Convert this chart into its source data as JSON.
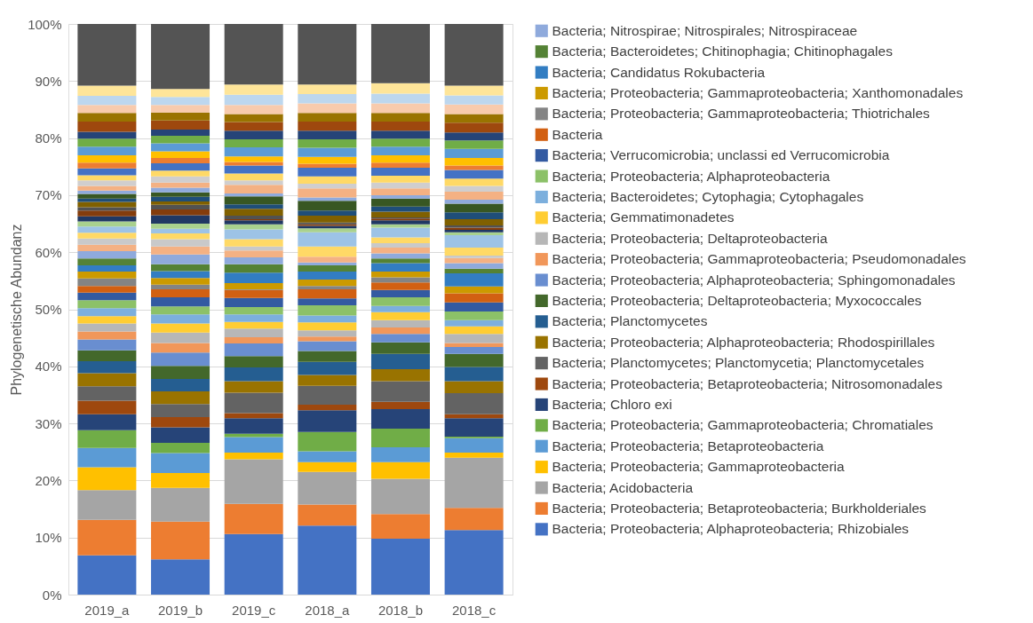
{
  "chart_data": {
    "type": "bar",
    "stacked": true,
    "ylabel": "Phylogenetische Abundanz",
    "categories": [
      "2019_a",
      "2019_b",
      "2019_c",
      "2018_a",
      "2018_b",
      "2018_c"
    ],
    "ylim": [
      0,
      100
    ],
    "yticks": [
      {
        "value": 0,
        "label": "0%"
      },
      {
        "value": 10,
        "label": "10%"
      },
      {
        "value": 20,
        "label": "20%"
      },
      {
        "value": 30,
        "label": "30%"
      },
      {
        "value": 40,
        "label": "40%"
      },
      {
        "value": 50,
        "label": "50%"
      },
      {
        "value": 60,
        "label": "60%"
      },
      {
        "value": 70,
        "label": "70%"
      },
      {
        "value": 80,
        "label": "80%"
      },
      {
        "value": 90,
        "label": "90%"
      },
      {
        "value": 100,
        "label": "100%"
      }
    ],
    "grid": "y",
    "legend": "right",
    "series": [
      {
        "name": "Bacteria; Proteobacteria; Alphaproteobacteria; Rhizobiales",
        "color": "#4472c4",
        "values": [
          6.9,
          6.2,
          10.6,
          12.1,
          9.8,
          11.3
        ]
      },
      {
        "name": "Bacteria; Proteobacteria; Betaproteobacteria; Burkholderiales",
        "color": "#ed7d31",
        "values": [
          6.2,
          6.6,
          5.3,
          3.7,
          4.3,
          3.9
        ]
      },
      {
        "name": "Bacteria; Acidobacteria",
        "color": "#a5a5a5",
        "values": [
          5.2,
          5.9,
          7.8,
          5.7,
          6.2,
          8.8
        ]
      },
      {
        "name": "Bacteria; Proteobacteria; Gammaproteobacteria",
        "color": "#ffc000",
        "values": [
          4.0,
          2.6,
          1.2,
          1.7,
          2.9,
          0.9
        ]
      },
      {
        "name": "Bacteria; Proteobacteria; Betaproteobacteria",
        "color": "#5b9bd5",
        "values": [
          3.4,
          3.5,
          2.7,
          1.9,
          2.6,
          2.5
        ]
      },
      {
        "name": "Bacteria; Proteobacteria; Gammaproteobacteria; Chromatiales",
        "color": "#70ad47",
        "values": [
          3.1,
          1.8,
          0.6,
          3.4,
          3.3,
          0.3
        ]
      },
      {
        "name": "Bacteria; Chloro exi",
        "color": "#264478",
        "values": [
          2.8,
          2.7,
          2.7,
          3.8,
          3.4,
          3.2
        ]
      },
      {
        "name": "Bacteria; Proteobacteria; Betaproteobacteria; Nitrosomonadales",
        "color": "#9e480e",
        "values": [
          2.4,
          1.8,
          0.9,
          1.0,
          1.3,
          0.7
        ]
      },
      {
        "name": "Bacteria; Planctomycetes; Planctomycetia; Planctomycetales",
        "color": "#636363",
        "values": [
          2.5,
          2.3,
          3.6,
          3.3,
          3.6,
          3.7
        ]
      },
      {
        "name": "Bacteria; Proteobacteria; Alphaproteobacteria; Rhodospirillales",
        "color": "#997300",
        "values": [
          2.3,
          2.2,
          2.0,
          1.9,
          2.1,
          2.1
        ]
      },
      {
        "name": "Bacteria; Planctomycetes",
        "color": "#255e91",
        "values": [
          2.1,
          2.2,
          2.4,
          2.3,
          2.7,
          2.5
        ]
      },
      {
        "name": "Bacteria; Proteobacteria; Deltaproteobacteria; Myxococcales",
        "color": "#43682b",
        "values": [
          1.9,
          2.3,
          2.0,
          1.9,
          2.0,
          2.3
        ]
      },
      {
        "name": "Bacteria; Proteobacteria; Alphaproteobacteria; Sphingomonadales",
        "color": "#698ed0",
        "values": [
          1.9,
          2.3,
          2.2,
          1.7,
          1.5,
          1.2
        ]
      },
      {
        "name": "Bacteria; Proteobacteria; Gammaproteobacteria; Pseudomonadales",
        "color": "#f1975a",
        "values": [
          1.4,
          1.7,
          1.1,
          0.8,
          1.1,
          0.7
        ]
      },
      {
        "name": "Bacteria; Proteobacteria; Deltaproteobacteria",
        "color": "#b7b7b7",
        "values": [
          1.4,
          1.8,
          1.5,
          1.1,
          1.3,
          1.6
        ]
      },
      {
        "name": "Bacteria; Gemmatimonadetes",
        "color": "#ffcd33",
        "values": [
          1.3,
          1.6,
          1.2,
          1.4,
          1.4,
          1.3
        ]
      },
      {
        "name": "Bacteria; Bacteroidetes; Cytophagia; Cytophagales",
        "color": "#7cafdd",
        "values": [
          1.4,
          1.6,
          1.3,
          1.2,
          1.1,
          1.1
        ]
      },
      {
        "name": "Bacteria; Proteobacteria; Alphaproteobacteria",
        "color": "#8cc168",
        "values": [
          1.4,
          1.4,
          1.3,
          1.8,
          1.5,
          1.5
        ]
      },
      {
        "name": "Bacteria; Verrucomicrobia; unclassi  ed Verrucomicrobia",
        "color": "#335aa1",
        "values": [
          1.3,
          1.6,
          1.6,
          1.2,
          1.3,
          1.6
        ]
      },
      {
        "name": "Bacteria",
        "color": "#d26012",
        "values": [
          1.2,
          1.4,
          1.4,
          1.6,
          1.3,
          1.6
        ]
      },
      {
        "name": "Bacteria; Proteobacteria; Gammaproteobacteria; Thiotrichales",
        "color": "#848484",
        "values": [
          1.3,
          0.8,
          0.1,
          0.6,
          0.9,
          null
        ]
      },
      {
        "name": "Bacteria; Proteobacteria; Gammaproteobacteria; Xanthomonadales",
        "color": "#cc9a00",
        "values": [
          1.2,
          1.2,
          1.1,
          1.1,
          1.0,
          1.2
        ]
      },
      {
        "name": "Bacteria; Candidatus Rokubacteria",
        "color": "#327dc2",
        "values": [
          1.1,
          1.2,
          1.8,
          1.4,
          1.5,
          2.3
        ]
      },
      {
        "name": "Bacteria; Bacteroidetes; Chitinophagia; Chitinophagales",
        "color": "#548235",
        "values": [
          1.2,
          1.2,
          1.5,
          1.1,
          0.8,
          0.8
        ]
      },
      {
        "name": "Bacteria; Nitrospirae; Nitrospirales; Nitrospiraceae",
        "color": "#8faadc",
        "values": [
          1.3,
          1.7,
          1.2,
          0.5,
          0.9,
          1.0
        ]
      },
      {
        "color": "#f4b183",
        "values": [
          1.1,
          1.4,
          1.2,
          1.0,
          1.0,
          0.9
        ]
      },
      {
        "color": "#c9c9c9",
        "values": [
          1.1,
          1.3,
          0.7,
          null,
          0.8,
          0.4
        ]
      },
      {
        "color": "#ffd966",
        "values": [
          1.0,
          1.0,
          1.3,
          1.8,
          1.0,
          1.4
        ]
      },
      {
        "color": "#9dc3e6",
        "values": [
          1.1,
          0.8,
          1.7,
          2.5,
          1.7,
          2.2
        ]
      },
      {
        "color": "#a9d18e",
        "values": [
          0.9,
          0.9,
          0.9,
          0.7,
          0.6,
          0.5
        ]
      },
      {
        "color": "#203864",
        "values": [
          0.9,
          1.5,
          0.7,
          0.4,
          0.7,
          0.4
        ]
      },
      {
        "color": "#843c0c",
        "values": [
          1.0,
          1.0,
          0.2,
          0.3,
          0.3,
          0.4
        ]
      },
      {
        "color": "#525252",
        "values": [
          0.6,
          0.8,
          0.6,
          0.3,
          0.2,
          0.4
        ]
      },
      {
        "color": "#806000",
        "values": [
          0.9,
          0.6,
          1.2,
          1.2,
          1.0,
          1.1
        ]
      },
      {
        "color": "#1f4e79",
        "values": [
          0.6,
          0.8,
          0.8,
          0.9,
          0.9,
          1.2
        ]
      },
      {
        "color": "#385723",
        "values": [
          0.8,
          0.8,
          1.4,
          1.7,
          1.4,
          1.5
        ]
      },
      {
        "color": "#8faadc",
        "values": [
          0.6,
          0.8,
          0.5,
          0.6,
          0.6,
          0.7
        ]
      },
      {
        "color": "#f4b183",
        "values": [
          0.8,
          0.9,
          1.5,
          1.6,
          1.2,
          1.4
        ]
      },
      {
        "color": "#d0cece",
        "values": [
          1.0,
          1.1,
          0.8,
          0.8,
          1.0,
          1.0
        ]
      },
      {
        "color": "#ffd966",
        "values": [
          0.9,
          1.0,
          1.2,
          1.3,
          1.2,
          1.3
        ]
      },
      {
        "color": "#4472c4",
        "values": [
          1.2,
          1.3,
          1.4,
          1.5,
          1.4,
          1.5
        ]
      },
      {
        "color": "#ed7d31",
        "values": [
          1.0,
          0.9,
          0.6,
          0.7,
          0.9,
          0.8
        ]
      },
      {
        "color": "#ffc000",
        "values": [
          1.3,
          1.2,
          1.0,
          1.2,
          1.3,
          1.3
        ]
      },
      {
        "color": "#5b9bd5",
        "values": [
          1.5,
          1.4,
          1.6,
          1.6,
          1.5,
          1.6
        ]
      },
      {
        "color": "#70ad47",
        "values": [
          1.4,
          1.3,
          1.4,
          1.5,
          1.4,
          1.5
        ]
      },
      {
        "color": "#264478",
        "values": [
          1.2,
          1.1,
          1.5,
          1.5,
          1.4,
          1.4
        ]
      },
      {
        "color": "#9e480e",
        "values": [
          1.8,
          1.6,
          1.5,
          1.6,
          1.6,
          1.7
        ]
      },
      {
        "color": "#997300",
        "values": [
          1.5,
          1.4,
          1.4,
          1.5,
          1.5,
          1.5
        ]
      },
      {
        "color": "#f8cbad",
        "values": [
          1.4,
          1.3,
          1.6,
          1.7,
          1.7,
          1.7
        ]
      },
      {
        "color": "#bdd7ee",
        "values": [
          1.6,
          1.4,
          1.8,
          1.6,
          1.7,
          1.6
        ]
      },
      {
        "color": "#fee599",
        "values": [
          1.8,
          1.4,
          1.8,
          1.7,
          1.8,
          1.7
        ]
      },
      {
        "color": "#545454",
        "values": [
          10.8,
          11.4,
          10.6,
          10.6,
          10.4,
          10.8
        ]
      }
    ]
  }
}
